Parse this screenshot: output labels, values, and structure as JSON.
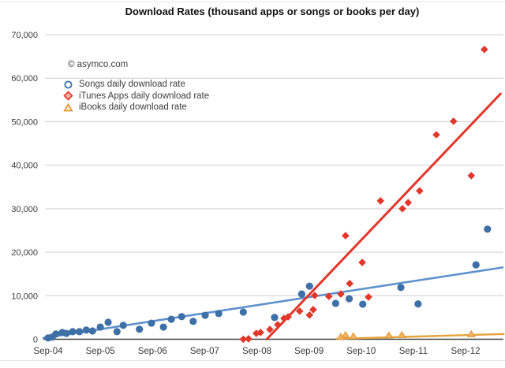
{
  "title": "Download Rates (thousand apps or songs or books per day)",
  "watermark": "© asymco.com",
  "legend": [
    {
      "id": "songs",
      "label": "Songs daily download rate"
    },
    {
      "id": "itunes-apps",
      "label": "iTunes Apps daily download rate"
    },
    {
      "id": "ibooks",
      "label": "iBooks daily download rate"
    }
  ],
  "chart_data": {
    "type": "scatter",
    "title": "Download Rates (thousand apps or songs or books per day)",
    "xlabel": "",
    "ylabel": "",
    "x_unit": "years since Sep-2004",
    "xlim": [
      -0.1,
      8.75
    ],
    "ylim": [
      0,
      70000
    ],
    "grid": true,
    "legend_position": "inside-top-left",
    "x_ticks": [
      {
        "t": 0,
        "label": "Sep-04"
      },
      {
        "t": 1,
        "label": "Sep-05"
      },
      {
        "t": 2,
        "label": "Sep-06"
      },
      {
        "t": 3,
        "label": "Sep-07"
      },
      {
        "t": 4,
        "label": "Sep-08"
      },
      {
        "t": 5,
        "label": "Sep-09"
      },
      {
        "t": 6,
        "label": "Sep-10"
      },
      {
        "t": 7,
        "label": "Sep-11"
      },
      {
        "t": 8,
        "label": "Sep-12"
      }
    ],
    "y_ticks": [
      {
        "v": 0,
        "label": "0"
      },
      {
        "v": 10000,
        "label": "10,000"
      },
      {
        "v": 20000,
        "label": "20,000"
      },
      {
        "v": 30000,
        "label": "30,000"
      },
      {
        "v": 40000,
        "label": "40,000"
      },
      {
        "v": 50000,
        "label": "50,000"
      },
      {
        "v": 60000,
        "label": "60,000"
      },
      {
        "v": 70000,
        "label": "70,000"
      }
    ],
    "series": [
      {
        "id": "songs",
        "name": "Songs daily download rate",
        "marker": "circle",
        "color": "#3E6FA7",
        "point_fill": "#3E6FA7",
        "legend_fill": "#FFFFFF",
        "points": [
          [
            0.0,
            300
          ],
          [
            0.08,
            500
          ],
          [
            0.15,
            1200
          ],
          [
            0.27,
            1550
          ],
          [
            0.35,
            1350
          ],
          [
            0.47,
            1750
          ],
          [
            0.6,
            1750
          ],
          [
            0.73,
            2100
          ],
          [
            0.85,
            1900
          ],
          [
            1.0,
            2800
          ],
          [
            1.15,
            3900
          ],
          [
            1.32,
            1750
          ],
          [
            1.44,
            3200
          ],
          [
            1.75,
            2300
          ],
          [
            1.98,
            3700
          ],
          [
            2.21,
            2800
          ],
          [
            2.36,
            4600
          ],
          [
            2.56,
            5200
          ],
          [
            2.78,
            4100
          ],
          [
            3.01,
            5500
          ],
          [
            3.27,
            5900
          ],
          [
            3.74,
            6250
          ],
          [
            4.34,
            5000
          ],
          [
            4.86,
            10400
          ],
          [
            5.01,
            12200
          ],
          [
            5.51,
            8250
          ],
          [
            5.77,
            9300
          ],
          [
            6.03,
            8050
          ],
          [
            6.76,
            11900
          ],
          [
            7.09,
            8100
          ],
          [
            8.2,
            17100
          ],
          [
            8.42,
            25300
          ]
        ]
      },
      {
        "id": "itunes-apps",
        "name": "iTunes Apps daily download rate",
        "marker": "diamond",
        "color": "#E2372B",
        "point_fill": "#E2372B",
        "legend_fill": "#F6B3A7",
        "points": [
          [
            3.74,
            0
          ],
          [
            3.84,
            100
          ],
          [
            3.99,
            1350
          ],
          [
            4.07,
            1550
          ],
          [
            4.25,
            2250
          ],
          [
            4.4,
            3350
          ],
          [
            4.52,
            4800
          ],
          [
            4.6,
            5150
          ],
          [
            4.82,
            6450
          ],
          [
            5.01,
            5550
          ],
          [
            5.08,
            6800
          ],
          [
            5.11,
            10050
          ],
          [
            5.38,
            9850
          ],
          [
            5.61,
            10400
          ],
          [
            5.7,
            23800
          ],
          [
            5.78,
            12800
          ],
          [
            6.02,
            17650
          ],
          [
            6.14,
            9700
          ],
          [
            6.37,
            31800
          ],
          [
            6.79,
            30000
          ],
          [
            6.9,
            31400
          ],
          [
            7.12,
            34100
          ],
          [
            7.44,
            47000
          ],
          [
            7.77,
            50100
          ],
          [
            8.11,
            37600
          ],
          [
            8.36,
            66600
          ]
        ]
      },
      {
        "id": "ibooks",
        "name": "iBooks daily download rate",
        "marker": "triangle",
        "color": "#E0922F",
        "point_fill": "#F2B763",
        "legend_fill": "#FBE4BC",
        "points": [
          [
            5.61,
            500
          ],
          [
            5.7,
            900
          ],
          [
            5.85,
            600
          ],
          [
            6.53,
            800
          ],
          [
            6.78,
            900
          ],
          [
            8.11,
            1100
          ]
        ]
      }
    ],
    "trend_lines": [
      {
        "series": "songs",
        "color": "#5F91CD",
        "width": 2.6,
        "t1": -0.09,
        "v1": 300,
        "t2": 8.71,
        "v2": 16500
      },
      {
        "series": "ibooks",
        "color": "#E8A33B",
        "width": 2.4,
        "t1": 5.53,
        "v1": 100,
        "t2": 8.73,
        "v2": 1200
      },
      {
        "series": "itunes-apps",
        "color": "#E2372B",
        "width": 3,
        "t1": 4.19,
        "v1": 0,
        "t2": 8.67,
        "v2": 56400
      }
    ],
    "colors": {
      "grid": "#CFCFCF",
      "axis": "#3F3F3F",
      "tick_text": "#3A3A3A",
      "frame": "#E9E9E9"
    }
  }
}
